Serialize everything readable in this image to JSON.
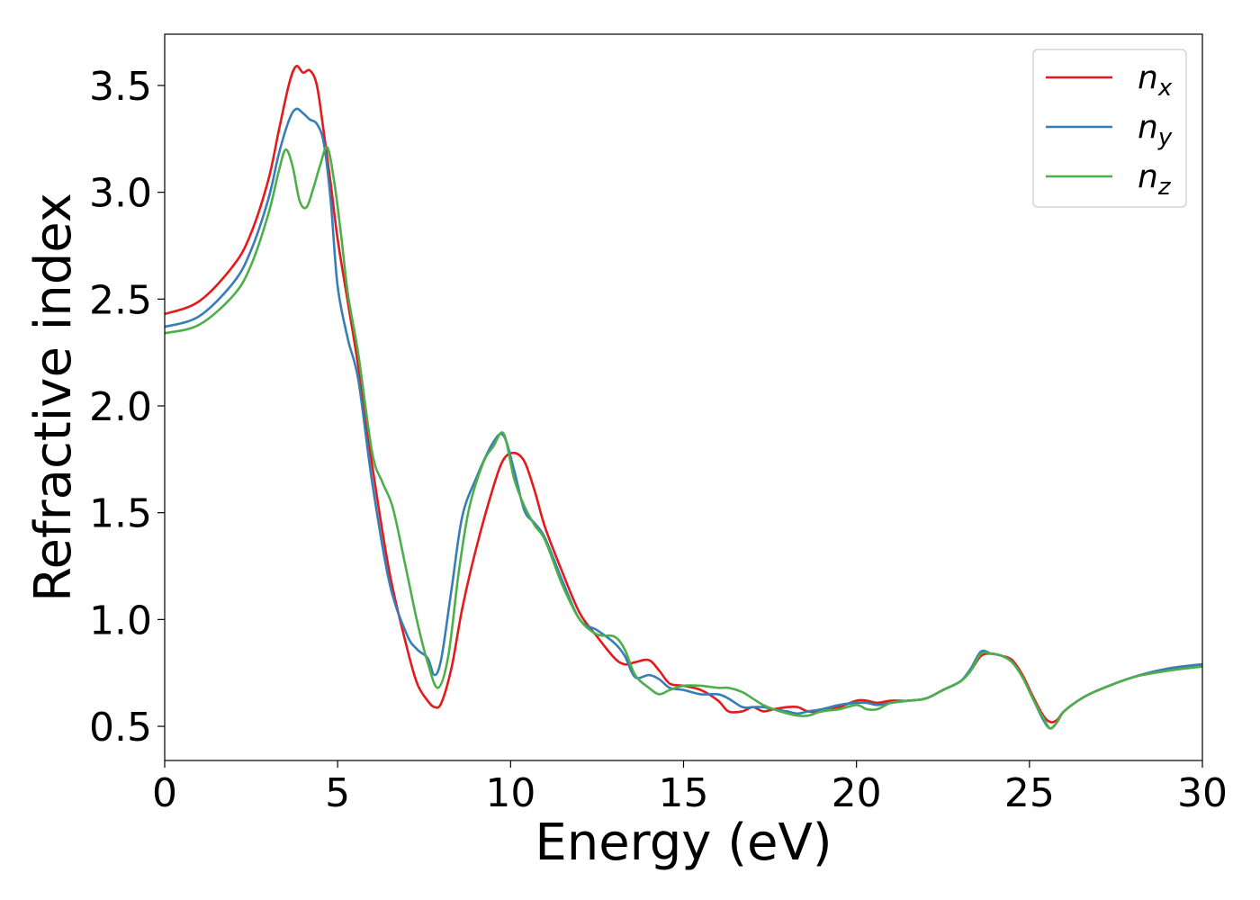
{
  "chart_data": {
    "type": "line",
    "title": "",
    "xlabel": "Energy (eV)",
    "ylabel": "Refractive index",
    "xlim": [
      0,
      30
    ],
    "ylim": [
      0.34,
      3.74
    ],
    "xticks": [
      0,
      5,
      10,
      15,
      20,
      25,
      30
    ],
    "yticks": [
      0.5,
      1.0,
      1.5,
      2.0,
      2.5,
      3.0,
      3.5
    ],
    "xtick_labels": [
      "0",
      "5",
      "10",
      "15",
      "20",
      "25",
      "30"
    ],
    "ytick_labels": [
      "0.5",
      "1.0",
      "1.5",
      "2.0",
      "2.5",
      "3.0",
      "3.5"
    ],
    "grid": false,
    "legend_position": "top-right",
    "series": [
      {
        "name": "n",
        "subscript": "x",
        "color": "#e41a1c",
        "x": [
          0,
          1,
          2,
          2.5,
          3,
          3.3,
          3.6,
          3.8,
          4.0,
          4.2,
          4.4,
          4.6,
          4.8,
          5.0,
          5.3,
          5.6,
          6.0,
          6.5,
          7.0,
          7.3,
          7.6,
          7.8,
          8.0,
          8.3,
          8.6,
          9.0,
          9.5,
          9.8,
          10.1,
          10.4,
          10.7,
          11.0,
          11.5,
          12.0,
          12.5,
          13.0,
          13.3,
          13.6,
          14.0,
          14.3,
          14.6,
          15.0,
          15.5,
          16.0,
          16.3,
          16.7,
          17.0,
          17.3,
          17.6,
          18.0,
          18.3,
          18.6,
          19.0,
          19.5,
          20.0,
          20.3,
          20.6,
          21.0,
          21.5,
          22.0,
          22.5,
          23.0,
          23.3,
          23.6,
          23.9,
          24.2,
          24.5,
          24.8,
          25.1,
          25.4,
          25.6,
          25.8,
          26.0,
          26.5,
          27.0,
          28.0,
          29.0,
          30.0
        ],
        "values": [
          2.43,
          2.49,
          2.66,
          2.81,
          3.06,
          3.29,
          3.51,
          3.59,
          3.56,
          3.57,
          3.5,
          3.28,
          3.04,
          2.78,
          2.48,
          2.18,
          1.72,
          1.22,
          0.87,
          0.7,
          0.62,
          0.59,
          0.61,
          0.78,
          1.05,
          1.33,
          1.62,
          1.75,
          1.78,
          1.74,
          1.6,
          1.43,
          1.22,
          1.03,
          0.92,
          0.82,
          0.79,
          0.8,
          0.81,
          0.76,
          0.7,
          0.69,
          0.67,
          0.62,
          0.57,
          0.57,
          0.59,
          0.57,
          0.58,
          0.59,
          0.59,
          0.57,
          0.57,
          0.59,
          0.62,
          0.62,
          0.61,
          0.62,
          0.62,
          0.63,
          0.67,
          0.71,
          0.76,
          0.83,
          0.84,
          0.83,
          0.81,
          0.74,
          0.64,
          0.55,
          0.52,
          0.53,
          0.57,
          0.63,
          0.67,
          0.73,
          0.77,
          0.79
        ]
      },
      {
        "name": "n",
        "subscript": "y",
        "color": "#377eb8",
        "x": [
          0,
          1,
          2,
          2.5,
          3,
          3.3,
          3.6,
          3.8,
          4.0,
          4.2,
          4.4,
          4.6,
          4.8,
          5.0,
          5.3,
          5.6,
          6.0,
          6.5,
          7.0,
          7.3,
          7.6,
          7.8,
          8.0,
          8.3,
          8.6,
          9.0,
          9.5,
          9.8,
          10.1,
          10.4,
          10.7,
          11.0,
          11.5,
          12.0,
          12.5,
          13.0,
          13.3,
          13.6,
          14.0,
          14.3,
          14.6,
          15.0,
          15.5,
          16.0,
          16.3,
          16.7,
          17.0,
          17.3,
          17.6,
          18.0,
          18.3,
          18.6,
          19.0,
          19.5,
          20.0,
          20.3,
          20.6,
          21.0,
          21.5,
          22.0,
          22.5,
          23.0,
          23.3,
          23.6,
          23.9,
          24.2,
          24.5,
          24.8,
          25.1,
          25.4,
          25.6,
          25.8,
          26.0,
          26.5,
          27.0,
          28.0,
          29.0,
          30.0
        ],
        "values": [
          2.37,
          2.42,
          2.58,
          2.73,
          2.97,
          3.18,
          3.34,
          3.39,
          3.37,
          3.34,
          3.32,
          3.23,
          2.96,
          2.56,
          2.31,
          2.12,
          1.64,
          1.17,
          0.93,
          0.86,
          0.82,
          0.74,
          0.82,
          1.15,
          1.48,
          1.66,
          1.83,
          1.86,
          1.7,
          1.51,
          1.45,
          1.38,
          1.18,
          1.0,
          0.95,
          0.89,
          0.83,
          0.73,
          0.74,
          0.72,
          0.68,
          0.67,
          0.65,
          0.65,
          0.63,
          0.59,
          0.59,
          0.59,
          0.58,
          0.57,
          0.56,
          0.57,
          0.58,
          0.6,
          0.61,
          0.61,
          0.6,
          0.61,
          0.62,
          0.63,
          0.67,
          0.71,
          0.77,
          0.85,
          0.84,
          0.83,
          0.8,
          0.73,
          0.63,
          0.53,
          0.49,
          0.52,
          0.57,
          0.63,
          0.67,
          0.73,
          0.77,
          0.79
        ]
      },
      {
        "name": "n",
        "subscript": "z",
        "color": "#4daf4a",
        "x": [
          0,
          1,
          2,
          2.5,
          3,
          3.3,
          3.5,
          3.7,
          3.9,
          4.1,
          4.3,
          4.5,
          4.7,
          4.9,
          5.1,
          5.3,
          5.6,
          6.0,
          6.3,
          6.6,
          7.0,
          7.3,
          7.6,
          7.9,
          8.2,
          8.5,
          8.8,
          9.2,
          9.5,
          9.8,
          10.1,
          10.4,
          10.7,
          11.0,
          11.5,
          12.0,
          12.5,
          13.0,
          13.3,
          13.6,
          14.0,
          14.3,
          14.6,
          15.0,
          15.5,
          16.0,
          16.3,
          16.7,
          17.0,
          17.3,
          17.6,
          18.0,
          18.3,
          18.6,
          19.0,
          19.5,
          20.0,
          20.3,
          20.6,
          21.0,
          21.5,
          22.0,
          22.5,
          23.0,
          23.3,
          23.6,
          23.9,
          24.2,
          24.5,
          24.8,
          25.1,
          25.4,
          25.6,
          25.8,
          26.0,
          26.5,
          27.0,
          28.0,
          29.0,
          30.0
        ],
        "values": [
          2.34,
          2.38,
          2.52,
          2.66,
          2.9,
          3.1,
          3.2,
          3.12,
          2.96,
          2.93,
          3.02,
          3.13,
          3.21,
          3.05,
          2.8,
          2.52,
          2.24,
          1.78,
          1.64,
          1.52,
          1.22,
          0.99,
          0.8,
          0.68,
          0.83,
          1.22,
          1.52,
          1.73,
          1.81,
          1.87,
          1.66,
          1.53,
          1.44,
          1.37,
          1.16,
          1.0,
          0.93,
          0.92,
          0.86,
          0.74,
          0.68,
          0.65,
          0.67,
          0.69,
          0.69,
          0.68,
          0.68,
          0.66,
          0.63,
          0.6,
          0.58,
          0.56,
          0.55,
          0.55,
          0.57,
          0.58,
          0.6,
          0.58,
          0.58,
          0.61,
          0.62,
          0.63,
          0.67,
          0.71,
          0.76,
          0.84,
          0.84,
          0.83,
          0.8,
          0.73,
          0.63,
          0.54,
          0.49,
          0.52,
          0.57,
          0.63,
          0.67,
          0.73,
          0.76,
          0.78
        ]
      }
    ]
  }
}
